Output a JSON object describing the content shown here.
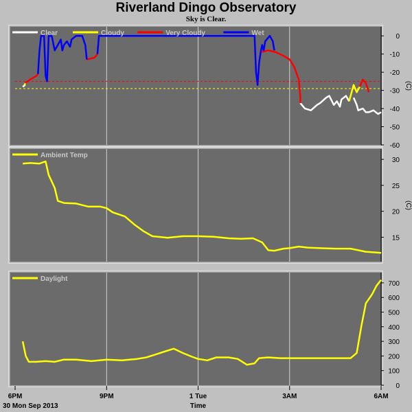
{
  "title": "Riverland Dingo Observatory",
  "subtitle": "Sky is Clear.",
  "colors": {
    "background": "#c0c0c0",
    "plot_bg": "#6b6b6b",
    "grid": "#ffffff",
    "clear": "#ffffff",
    "cloudy": "#ffff00",
    "very_cloudy": "#ff0000",
    "wet": "#0000ff",
    "temp": "#ffff00",
    "daylight": "#ffff00"
  },
  "x_axis": {
    "label": "Time",
    "date_label": "30 Mon Sep 2013",
    "ticks": [
      {
        "label": "6PM",
        "hour": 0
      },
      {
        "label": "9PM",
        "hour": 3
      },
      {
        "label": "1 Tue",
        "hour": 6
      },
      {
        "label": "3AM",
        "hour": 9
      },
      {
        "label": "6AM",
        "hour": 12
      }
    ],
    "range_hours": [
      0,
      12
    ]
  },
  "chart_data": [
    {
      "type": "line",
      "panel": "cloud",
      "legend": [
        "Clear",
        "Cloudy",
        "Very Cloudy",
        "Wet"
      ],
      "unit": "(C)",
      "ylim": [
        -60,
        5
      ],
      "yticks": [
        0,
        -10,
        -20,
        -30,
        -40,
        -50,
        -60
      ],
      "thresholds": [
        {
          "value": -25,
          "color": "#ff0000"
        },
        {
          "value": -29,
          "color": "#ffff00"
        }
      ],
      "series": [
        {
          "name": "Clear",
          "color": "#ffffff",
          "segments": [
            [
              [
                0.25,
                -28
              ],
              [
                0.33,
                -27
              ]
            ],
            [
              [
                9.35,
                -37
              ],
              [
                9.5,
                -40
              ],
              [
                9.7,
                -41
              ],
              [
                9.9,
                -38
              ],
              [
                10.0,
                -37
              ],
              [
                10.2,
                -34
              ],
              [
                10.3,
                -33
              ],
              [
                10.45,
                -38
              ],
              [
                10.55,
                -36
              ],
              [
                10.65,
                -39
              ],
              [
                10.7,
                -35
              ],
              [
                10.85,
                -33
              ],
              [
                10.95,
                -36
              ]
            ],
            [
              [
                11.1,
                -34
              ],
              [
                11.2,
                -38
              ],
              [
                11.25,
                -41
              ],
              [
                11.4,
                -40
              ],
              [
                11.5,
                -42
              ],
              [
                11.6,
                -42
              ],
              [
                11.75,
                -41
              ],
              [
                11.9,
                -43
              ],
              [
                12.0,
                -42
              ]
            ]
          ]
        },
        {
          "name": "Cloudy",
          "color": "#ffff00",
          "segments": [
            [
              [
                0.3,
                -27
              ],
              [
                0.35,
                -26
              ]
            ],
            [
              [
                10.95,
                -36
              ],
              [
                11.05,
                -30
              ],
              [
                11.1,
                -27
              ],
              [
                11.2,
                -31
              ],
              [
                11.3,
                -28
              ]
            ]
          ]
        },
        {
          "name": "Very Cloudy",
          "color": "#ff0000",
          "segments": [
            [
              [
                0.33,
                -26
              ],
              [
                0.5,
                -24
              ],
              [
                0.7,
                -22
              ],
              [
                0.75,
                -21
              ]
            ],
            [
              [
                2.35,
                -13
              ],
              [
                2.6,
                -12
              ],
              [
                2.7,
                -10
              ]
            ],
            [
              [
                8.05,
                -9
              ],
              [
                8.3,
                -8
              ],
              [
                8.55,
                -9
              ],
              [
                8.8,
                -11
              ],
              [
                9.0,
                -13
              ],
              [
                9.15,
                -17
              ],
              [
                9.3,
                -24
              ],
              [
                9.35,
                -33
              ],
              [
                9.35,
                -37
              ]
            ],
            [
              [
                11.3,
                -28
              ],
              [
                11.4,
                -24
              ],
              [
                11.5,
                -26
              ],
              [
                11.6,
                -31
              ]
            ]
          ]
        },
        {
          "name": "Wet",
          "color": "#0000ff",
          "segments": [
            [
              [
                0.75,
                -21
              ],
              [
                0.8,
                -8
              ],
              [
                0.85,
                0
              ],
              [
                0.95,
                0
              ],
              [
                1.0,
                -22
              ],
              [
                1.05,
                -25
              ],
              [
                1.1,
                0
              ],
              [
                1.2,
                0
              ],
              [
                1.3,
                -8
              ],
              [
                1.4,
                -5
              ],
              [
                1.5,
                -2
              ],
              [
                1.55,
                -8
              ],
              [
                1.6,
                -5
              ],
              [
                1.7,
                -3
              ],
              [
                1.8,
                -6
              ],
              [
                1.85,
                -2
              ],
              [
                2.0,
                0
              ],
              [
                2.2,
                0
              ],
              [
                2.3,
                -5
              ],
              [
                2.35,
                -13
              ]
            ],
            [
              [
                2.7,
                -10
              ],
              [
                2.75,
                0
              ],
              [
                7.85,
                0
              ],
              [
                7.9,
                -20
              ],
              [
                7.95,
                -27
              ],
              [
                8.0,
                -15
              ],
              [
                8.05,
                -9
              ],
              [
                8.1,
                -5
              ],
              [
                8.15,
                -8
              ],
              [
                8.2,
                -3
              ],
              [
                8.35,
                0
              ],
              [
                8.45,
                -3
              ],
              [
                8.5,
                -8
              ]
            ]
          ]
        }
      ]
    },
    {
      "type": "line",
      "panel": "temp",
      "legend": [
        "Ambient Temp"
      ],
      "unit": "(C)",
      "ylim": [
        10.3,
        32
      ],
      "yticks": [
        30,
        25,
        20,
        15
      ],
      "series": [
        {
          "name": "Ambient Temp",
          "color": "#ffff00",
          "x": [
            0.25,
            0.5,
            0.8,
            1.0,
            1.1,
            1.3,
            1.4,
            1.6,
            2.0,
            2.4,
            2.8,
            3.0,
            3.2,
            3.6,
            3.9,
            4.2,
            4.5,
            5.0,
            5.5,
            6.0,
            6.5,
            7.0,
            7.4,
            7.8,
            8.1,
            8.3,
            8.5,
            8.8,
            9.0,
            9.3,
            9.6,
            10.0,
            10.5,
            11.0,
            11.5,
            12.0
          ],
          "values": [
            29.2,
            29.3,
            29.2,
            29.6,
            27,
            24.5,
            22,
            21.6,
            21.5,
            20.9,
            20.9,
            20.6,
            19.8,
            19,
            17.5,
            16.2,
            15.2,
            14.9,
            15.2,
            15.2,
            15.1,
            14.8,
            14.7,
            14.8,
            14,
            12.5,
            12.4,
            12.8,
            12.9,
            13.2,
            13,
            12.9,
            12.8,
            12.8,
            12.2,
            12
          ]
        }
      ]
    },
    {
      "type": "line",
      "panel": "daylight",
      "legend": [
        "Daylight"
      ],
      "unit": "",
      "ylim": [
        0,
        770
      ],
      "yticks": [
        700,
        600,
        500,
        400,
        300,
        200,
        100,
        0
      ],
      "series": [
        {
          "name": "Daylight",
          "color": "#ffff00",
          "x": [
            0.25,
            0.35,
            0.45,
            0.7,
            1.0,
            1.3,
            1.6,
            2.0,
            2.5,
            3.0,
            3.5,
            4.0,
            4.3,
            4.6,
            4.9,
            5.2,
            5.5,
            5.8,
            6.0,
            6.3,
            6.6,
            7.0,
            7.3,
            7.6,
            7.85,
            8.0,
            8.3,
            8.7,
            9.0,
            9.5,
            10.0,
            10.5,
            11.0,
            11.2,
            11.35,
            11.5,
            11.7,
            11.85,
            12.0
          ],
          "values": [
            300,
            200,
            160,
            160,
            165,
            160,
            175,
            175,
            165,
            175,
            170,
            180,
            190,
            210,
            230,
            250,
            220,
            195,
            180,
            170,
            190,
            190,
            180,
            140,
            150,
            185,
            190,
            185,
            185,
            185,
            185,
            185,
            185,
            220,
            400,
            560,
            620,
            680,
            720
          ]
        }
      ]
    }
  ]
}
